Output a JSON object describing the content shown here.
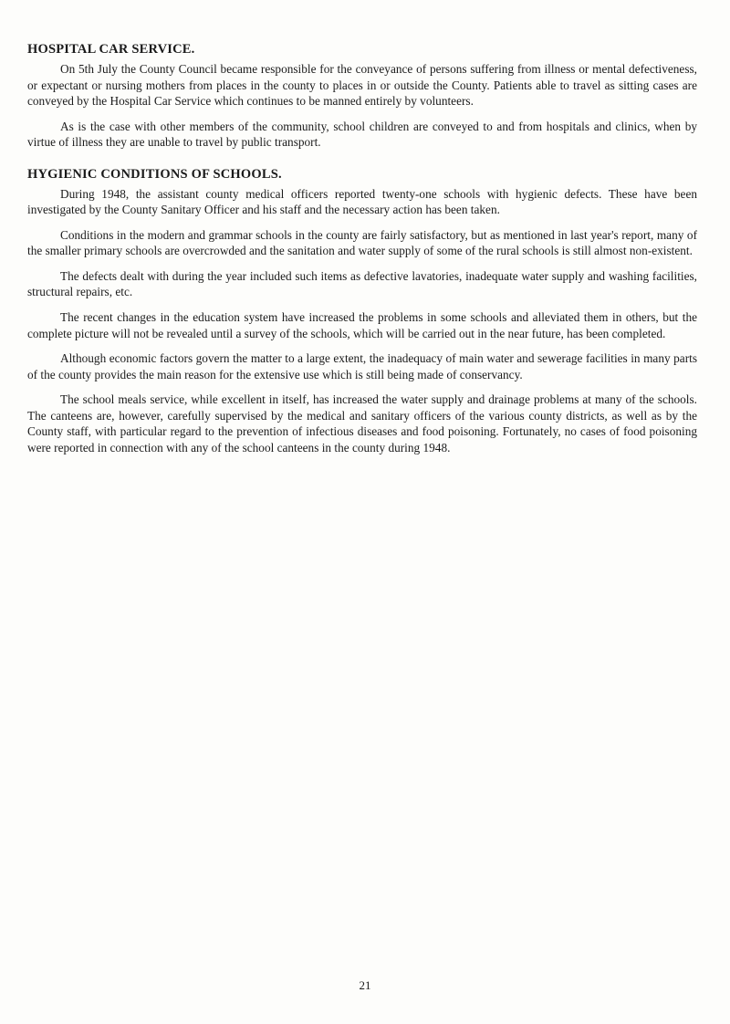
{
  "section1": {
    "heading": "HOSPITAL CAR SERVICE.",
    "p1": "On 5th July the County Council became responsible for the conveyance of persons suffering from illness or mental defectiveness, or expectant or nursing mothers from places in the county to places in or outside the County. Patients able to travel as sitting cases are conveyed by the Hospital Car Service which continues to be manned entirely by volunteers.",
    "p2": "As is the case with other members of the community, school children are conveyed to and from hospitals and clinics, when by virtue of illness they are unable to travel by public transport."
  },
  "section2": {
    "heading": "HYGIENIC CONDITIONS OF SCHOOLS.",
    "p1": "During 1948, the assistant county medical officers reported twenty-one schools with hygienic defects. These have been investigated by the County Sanitary Officer and his staff and the necessary action has been taken.",
    "p2": "Conditions in the modern and grammar schools in the county are fairly satisfactory, but as mentioned in last year's report, many of the smaller primary schools are overcrowded and the sanitation and water supply of some of the rural schools is still almost non-existent.",
    "p3": "The defects dealt with during the year included such items as defective lavatories, inadequate water supply and washing facilities, structural repairs, etc.",
    "p4": "The recent changes in the education system have increased the problems in some schools and alleviated them in others, but the complete picture will not be revealed until a survey of the schools, which will be carried out in the near future, has been completed.",
    "p5": "Although economic factors govern the matter to a large extent, the inadequacy of main water and sewerage facilities in many parts of the county provides the main reason for the extensive use which is still being made of conservancy.",
    "p6": "The school meals service, while excellent in itself, has increased the water supply and drainage problems at many of the schools. The canteens are, however, carefully supervised by the medical and sanitary officers of the various county districts, as well as by the County staff, with particular regard to the prevention of infectious diseases and food poisoning. Fortunately, no cases of food poisoning were reported in connection with any of the school canteens in the county during 1948."
  },
  "page_number": "21"
}
